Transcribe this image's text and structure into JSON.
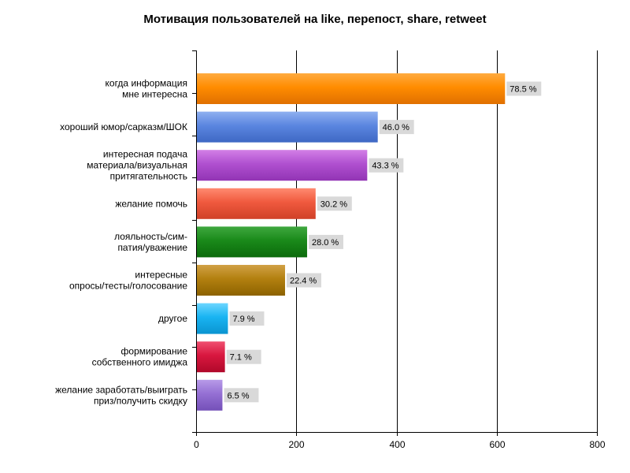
{
  "chart_data": {
    "type": "bar",
    "orientation": "horizontal",
    "title": "Мотивация пользователей на like, перепост, share, retweet",
    "xlabel": "",
    "ylabel": "",
    "xlim": [
      0,
      800
    ],
    "x_ticks": [
      "0",
      "200",
      "400",
      "600",
      "800"
    ],
    "grid": true,
    "categories": [
      [
        "когда информация",
        "мне интересна"
      ],
      [
        "хороший юмор/сарказм/ШОК"
      ],
      [
        "интересная подача",
        "материала/визуальная",
        "притягательность"
      ],
      [
        "желание помочь"
      ],
      [
        "лояльность/сим-",
        "патия/уважение"
      ],
      [
        "интересные",
        "опросы/тесты/голосование"
      ],
      [
        "другое"
      ],
      [
        "формирование",
        "собственного имиджа"
      ],
      [
        "желание заработать/выиграть",
        "приз/получить скидку"
      ]
    ],
    "values": [
      615,
      361,
      340,
      237,
      220,
      176,
      62,
      56,
      51
    ],
    "value_labels": [
      "78.5 %",
      "46.0 %",
      "43.3 %",
      "30.2 %",
      "28.0 %",
      "22.4 %",
      "7.9 %",
      "7.1 %",
      "6.5 %"
    ],
    "colors": [
      [
        "#ffab40",
        "#ff8c00",
        "#e07000"
      ],
      [
        "#8fb0f0",
        "#5b86e0",
        "#3e68c4"
      ],
      [
        "#d27fe6",
        "#b050d0",
        "#9234b4"
      ],
      [
        "#ff8a70",
        "#f05a3e",
        "#d04028"
      ],
      [
        "#3fa83f",
        "#1a8a1a",
        "#0b6a0b"
      ],
      [
        "#d1a145",
        "#b38010",
        "#8c6200"
      ],
      [
        "#6cd6ff",
        "#19b4f2",
        "#0a94d0"
      ],
      [
        "#f05070",
        "#d8173f",
        "#b0082a"
      ],
      [
        "#b79ae8",
        "#9570d4",
        "#7450b8"
      ]
    ]
  }
}
